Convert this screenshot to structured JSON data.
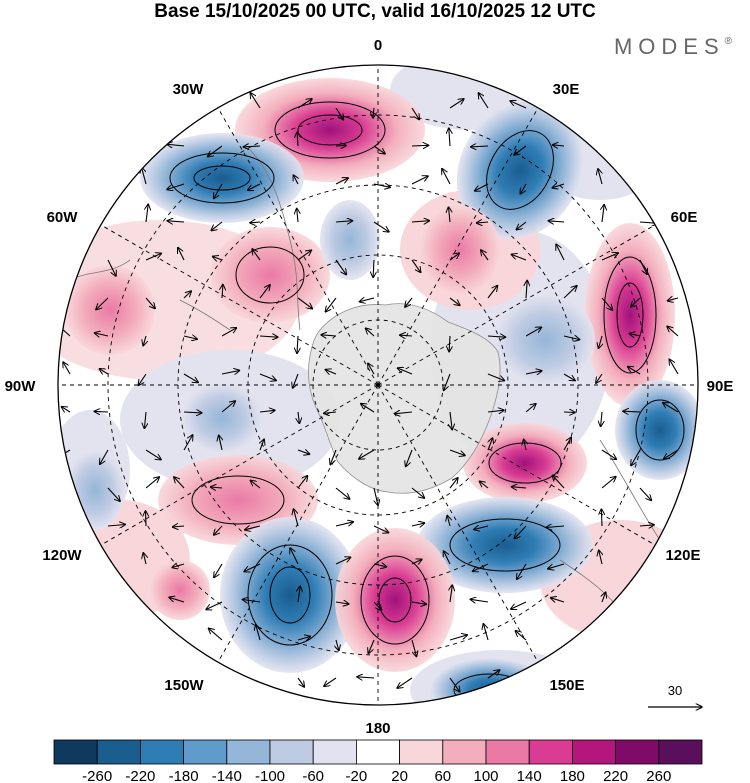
{
  "title": "Base 15/10/2025 00 UTC, valid 16/10/2025 12 UTC",
  "brand": {
    "name": "MODES",
    "mark": "®"
  },
  "map": {
    "projection": "south-polar-stereographic",
    "longitude_labels": {
      "top": "0",
      "top_right": "30E",
      "right_upper": "60E",
      "right": "90E",
      "right_lower": "120E",
      "bottom_right": "150E",
      "bottom": "180",
      "bottom_left": "150W",
      "left_lower": "120W",
      "left": "90W",
      "left_upper": "60W",
      "top_left": "30W"
    },
    "vector_reference": {
      "label": "30",
      "icon": "arrow-right-icon"
    }
  },
  "colorbar": {
    "tick_labels": [
      "-260",
      "-220",
      "-180",
      "-140",
      "-100",
      "-60",
      "-20",
      "20",
      "60",
      "100",
      "140",
      "180",
      "220",
      "260"
    ],
    "colors": [
      "#0f3a5e",
      "#1a5d8f",
      "#2f7db5",
      "#5f9ccb",
      "#94b6d8",
      "#bfcbe3",
      "#e3e3f0",
      "#ffffff",
      "#f8d6d9",
      "#f3aebc",
      "#ea79a6",
      "#d93c92",
      "#b3177d",
      "#800a68",
      "#5a0f5c"
    ]
  }
}
